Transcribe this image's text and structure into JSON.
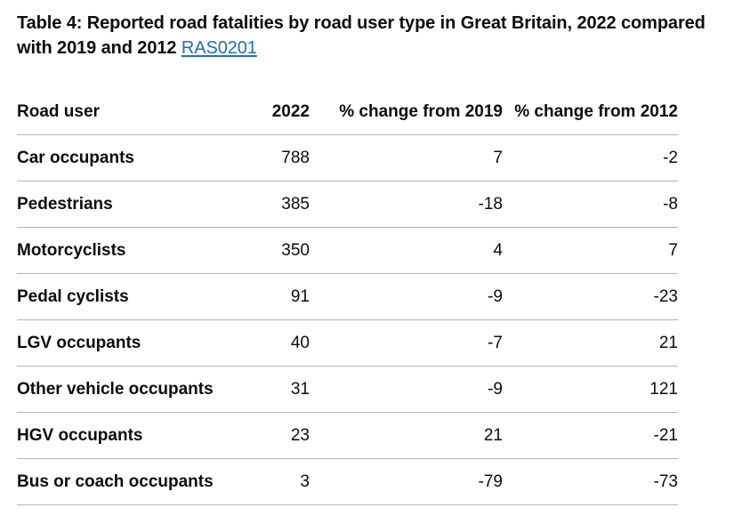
{
  "caption": {
    "title": "Table 4: Reported road fatalities by road user type in Great Britain, 2022 compared with 2019 and 2012",
    "link_text": "RAS0201"
  },
  "table": {
    "headers": [
      "Road user",
      "2022",
      "% change from 2019",
      "% change from 2012"
    ],
    "rows": [
      [
        "Car occupants",
        "788",
        "7",
        "-2"
      ],
      [
        "Pedestrians",
        "385",
        "-18",
        "-8"
      ],
      [
        "Motorcyclists",
        "350",
        "4",
        "7"
      ],
      [
        "Pedal cyclists",
        "91",
        "-9",
        "-23"
      ],
      [
        "LGV occupants",
        "40",
        "-7",
        "21"
      ],
      [
        "Other vehicle occupants",
        "31",
        "-9",
        "121"
      ],
      [
        "HGV occupants",
        "23",
        "21",
        "-21"
      ],
      [
        "Bus or coach occupants",
        "3",
        "-79",
        "-73"
      ]
    ]
  }
}
